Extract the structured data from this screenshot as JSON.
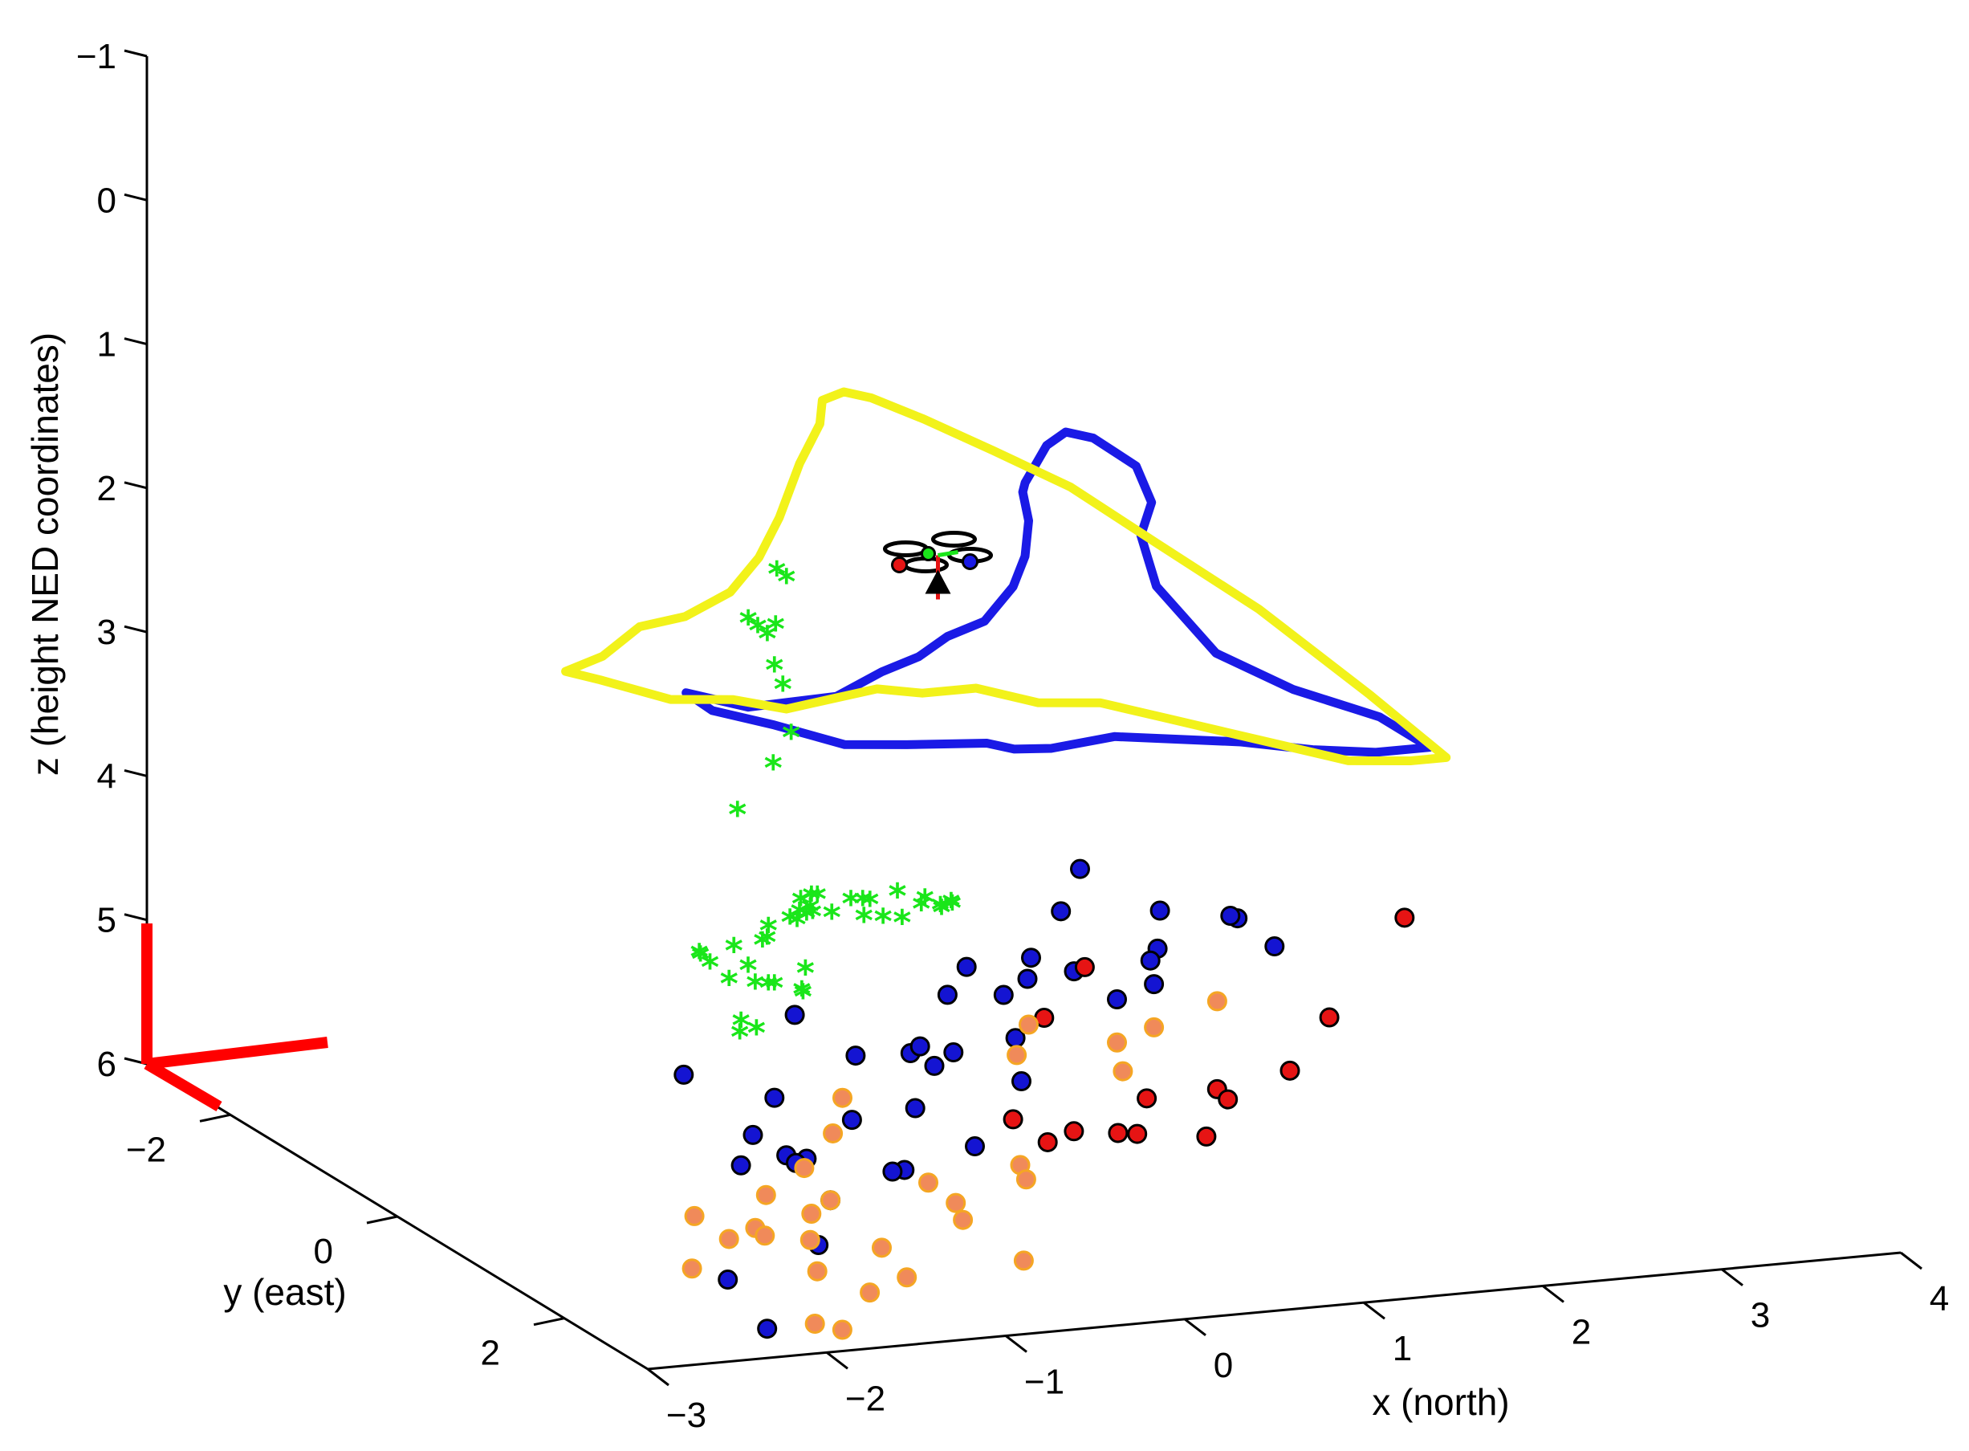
{
  "chart_data": {
    "type": "scatter",
    "projection": "3d",
    "title": "",
    "xlabel": "x  (north)",
    "ylabel": "y (east)",
    "zlabel": "z (height NED coordinates)",
    "xlim": [
      -3,
      4
    ],
    "ylim": [
      -3,
      3
    ],
    "zlim": [
      -1,
      6
    ],
    "z_direction": "reverse",
    "grid": false,
    "legend": "none",
    "ticks": {
      "x": [
        "−3",
        "−2",
        "−1",
        "0",
        "1",
        "2",
        "3",
        "4"
      ],
      "y": [
        "−2",
        "0",
        "2"
      ],
      "z": [
        "−1",
        "0",
        "1",
        "2",
        "3",
        "4",
        "5",
        "6"
      ]
    },
    "colors": {
      "axis": "#000000",
      "blue_track": "#1a1ae6",
      "yellow_track": "#f2f21a",
      "green_points": "#1ae61a",
      "blue_points": "#1414d2",
      "red_points": "#e61414",
      "orange_points": "#f08a5a",
      "frame": "#ff0000"
    },
    "series": [
      {
        "role": "blue_track",
        "type": "line",
        "x": [
          -1.9,
          -1.6,
          -1.2,
          -0.9,
          -0.6,
          -0.3,
          0.0,
          0.3,
          0.6,
          0.9,
          1.1,
          1.3,
          1.5,
          1.7,
          1.9,
          2.1,
          2.2,
          2.1,
          1.9,
          1.8,
          1.9,
          2.1,
          2.3,
          2.3,
          2.0,
          1.6,
          1.2,
          0.8,
          0.4,
          0.0,
          -0.3,
          -0.5,
          -0.9,
          -1.2,
          -1.5,
          -1.8,
          -1.9
        ],
        "y": [
          1.1,
          1.2,
          1.4,
          1.3,
          1.1,
          0.8,
          0.6,
          0.3,
          -0.2,
          -0.8,
          -1.3,
          -1.7,
          -2.0,
          -2.3,
          -2.5,
          -2.6,
          -2.3,
          -1.9,
          -1.6,
          -1.2,
          -0.7,
          -0.2,
          0.4,
          1.0,
          1.0,
          1.1,
          1.1,
          1.2,
          1.3,
          1.4,
          1.6,
          1.7,
          1.6,
          1.5,
          1.3,
          1.2,
          1.1
        ],
        "z": [
          2.1,
          2.2,
          2.1,
          2.0,
          2.0,
          2.0,
          2.0,
          1.9,
          1.9,
          1.9,
          1.9,
          2.0,
          2.0,
          2.0,
          2.0,
          2.1,
          2.2,
          2.3,
          2.4,
          2.6,
          2.9,
          3.0,
          3.0,
          3.0,
          3.0,
          2.9,
          2.8,
          2.7,
          2.6,
          2.6,
          2.5,
          2.4,
          2.4,
          2.4,
          2.3,
          2.2,
          2.1
        ]
      },
      {
        "role": "yellow_track",
        "type": "line",
        "x": [
          -2.2,
          -1.9,
          -1.6,
          -1.3,
          -1.0,
          -0.7,
          -0.4,
          -0.1,
          0.2,
          0.4,
          0.6,
          0.8,
          1.0,
          1.2,
          1.4,
          1.6,
          1.8,
          2.0,
          2.2,
          2.3,
          2.1,
          1.8,
          1.5,
          1.2,
          0.9,
          0.6,
          0.3,
          0.0,
          -0.3,
          -0.6,
          -0.9,
          -1.2,
          -1.5,
          -1.8,
          -2.1,
          -2.2
        ],
        "y": [
          0.3,
          0.1,
          -0.1,
          -0.2,
          -0.3,
          -0.6,
          -1.0,
          -1.4,
          -1.8,
          -2.2,
          -2.5,
          -2.8,
          -2.9,
          -2.7,
          -2.3,
          -1.8,
          -1.2,
          -0.4,
          0.5,
          1.2,
          1.2,
          1.1,
          1.0,
          0.9,
          0.8,
          0.7,
          0.6,
          0.5,
          0.5,
          0.6,
          0.7,
          0.8,
          0.8,
          0.7,
          0.5,
          0.3
        ],
        "z": [
          2.2,
          2.2,
          2.1,
          2.1,
          2.0,
          1.9,
          1.8,
          1.6,
          1.5,
          1.5,
          1.6,
          1.7,
          1.8,
          1.9,
          2.0,
          2.1,
          2.3,
          2.5,
          2.8,
          3.0,
          3.0,
          3.0,
          2.9,
          2.8,
          2.7,
          2.6,
          2.6,
          2.5,
          2.5,
          2.4,
          2.4,
          2.4,
          2.3,
          2.3,
          2.2,
          2.2
        ]
      },
      {
        "role": "green_points",
        "type": "scatter",
        "marker": "asterisk",
        "x": [
          -0.9,
          -0.8,
          -0.8,
          -0.7,
          -0.8,
          -0.6,
          -0.5,
          -0.7,
          -0.8,
          -0.9,
          -1.1,
          -1.8,
          -1.6,
          -1.4,
          -1.3,
          -1.4,
          -1.5,
          -1.4,
          -1.3,
          -1.1,
          -1.0,
          -0.9,
          -0.8,
          -0.7,
          -0.6,
          -0.5,
          -0.4,
          -0.2,
          0.0,
          0.2,
          0.4,
          0.6,
          0.8,
          -1.7,
          -1.5,
          -1.3,
          -1.2,
          -1.3,
          -1.5,
          -1.6,
          -1.6,
          -1.0,
          -0.9,
          -0.7,
          -0.4,
          -0.3,
          -0.1,
          0.1,
          0.3,
          0.5,
          0.6,
          0.7
        ],
        "y": [
          -0.3,
          -0.4,
          -0.2,
          -0.5,
          0.0,
          -0.6,
          -0.7,
          -0.4,
          -0.1,
          0.0,
          0.0,
          1.4,
          1.2,
          1.0,
          0.8,
          0.6,
          0.4,
          0.2,
          0.1,
          0.3,
          0.5,
          0.4,
          0.1,
          -0.1,
          -0.2,
          -0.4,
          -0.6,
          -0.8,
          -1.0,
          -1.2,
          -1.3,
          -1.4,
          -1.5,
          1.5,
          1.3,
          1.2,
          1.0,
          0.8,
          0.9,
          1.1,
          1.3,
          0.6,
          0.2,
          0.1,
          0.0,
          -0.2,
          -0.4,
          -0.6,
          -0.8,
          -1.0,
          -1.2,
          -1.3
        ],
        "z": [
          2.2,
          2.3,
          2.5,
          2.4,
          2.9,
          2.0,
          2.1,
          2.3,
          2.6,
          3.1,
          3.4,
          4.0,
          4.0,
          3.9,
          3.9,
          4.1,
          4.2,
          4.3,
          4.4,
          4.2,
          4.0,
          4.0,
          4.1,
          4.1,
          4.2,
          4.2,
          4.4,
          4.5,
          4.5,
          4.6,
          4.6,
          4.7,
          4.8,
          4.0,
          4.1,
          4.2,
          4.3,
          4.3,
          4.5,
          4.5,
          4.4,
          4.3,
          4.1,
          4.0,
          4.1,
          4.3,
          4.4,
          4.5,
          4.5,
          4.6,
          4.7,
          4.7
        ]
      },
      {
        "role": "blue_points",
        "type": "scatter",
        "marker": "filled-circle",
        "x": [
          -2.1,
          -1.9,
          -1.3,
          -1.2,
          -1.4,
          -1.2,
          -1.0,
          -0.9,
          -0.8,
          -0.6,
          -0.4,
          -0.3,
          -0.2,
          0.0,
          0.1,
          0.2,
          0.3,
          0.4,
          0.6,
          0.8,
          1.1,
          1.3,
          1.5,
          1.7,
          1.9,
          2.1,
          2.3,
          2.4,
          2.6,
          -1.5,
          -0.5,
          -0.7,
          0.5,
          0.9,
          1.2,
          1.6,
          2.0,
          -0.1,
          -1.1,
          0.2
        ],
        "y": [
          2.5,
          1.6,
          1.4,
          0.4,
          0.0,
          0.8,
          0.9,
          0.4,
          -0.2,
          0.3,
          0.5,
          -0.3,
          0.2,
          0.0,
          -0.5,
          -0.2,
          0.4,
          -0.7,
          -0.9,
          -0.6,
          -1.2,
          -0.6,
          -1.7,
          -1.9,
          -1.4,
          -1.8,
          -1.3,
          -1.6,
          -1.5,
          0.9,
          -0.6,
          1.0,
          -0.1,
          -1.1,
          -0.9,
          -0.8,
          -1.7,
          0.7,
          0.7,
          -0.6
        ],
        "z": [
          6.0,
          6.0,
          5.9,
          5.5,
          5.2,
          5.5,
          5.8,
          5.7,
          5.5,
          5.5,
          5.8,
          5.3,
          5.5,
          5.3,
          5.4,
          5.3,
          5.3,
          5.1,
          5.0,
          5.0,
          5.1,
          5.2,
          5.0,
          4.8,
          5.2,
          5.1,
          5.0,
          5.1,
          5.3,
          5.5,
          5.1,
          5.6,
          5.2,
          5.3,
          5.1,
          5.2,
          5.4,
          5.6,
          5.6,
          5.4
        ]
      },
      {
        "role": "red_points",
        "type": "scatter",
        "marker": "filled-circle",
        "x": [
          0.3,
          0.4,
          0.5,
          0.7,
          0.9,
          1.0,
          1.1,
          1.3,
          1.5,
          1.8,
          2.3,
          3.0,
          0.8,
          1.4
        ],
        "y": [
          0.3,
          0.5,
          0.6,
          0.7,
          0.5,
          0.4,
          0.9,
          0.6,
          0.3,
          0.4,
          -0.2,
          -0.8,
          -0.4,
          -1.2
        ],
        "z": [
          5.6,
          5.7,
          5.6,
          5.6,
          5.7,
          5.5,
          5.6,
          5.4,
          5.6,
          5.4,
          5.3,
          4.9,
          5.2,
          5.2
        ]
      },
      {
        "role": "orange_points",
        "type": "scatter",
        "marker": "filled-circle",
        "x": [
          -2.1,
          -1.9,
          -1.8,
          -1.7,
          -1.6,
          -1.5,
          -1.4,
          -1.3,
          -1.2,
          -1.1,
          -1.0,
          -0.9,
          -0.8,
          -0.7,
          -0.5,
          -0.3,
          -0.2,
          -1.6,
          -1.4,
          -1.2,
          -0.9,
          0.6,
          0.9,
          1.1,
          1.3,
          1.6,
          2.0,
          0.2,
          -0.4,
          0.0
        ],
        "y": [
          1.6,
          1.2,
          1.4,
          1.5,
          1.4,
          1.2,
          1.6,
          1.3,
          1.1,
          0.8,
          0.9,
          1.3,
          0.5,
          0.4,
          1.0,
          0.9,
          1.5,
          2.0,
          1.9,
          1.8,
          1.6,
          -0.3,
          -0.8,
          -0.1,
          -0.6,
          -0.8,
          -0.9,
          0.6,
          1.2,
          1.1
        ],
        "z": [
          5.9,
          5.7,
          5.8,
          5.7,
          5.8,
          5.6,
          6.0,
          5.9,
          5.8,
          5.6,
          5.8,
          6.0,
          5.5,
          5.3,
          5.7,
          5.9,
          6.1,
          6.2,
          6.3,
          6.1,
          6.1,
          5.4,
          5.4,
          5.5,
          5.5,
          5.5,
          5.4,
          5.8,
          5.9,
          5.7
        ]
      }
    ],
    "drone": {
      "position": {
        "x": 0.3,
        "y": -0.6,
        "z": 2.0
      },
      "rotor_colors": [
        "#000000",
        "#e61414",
        "#1a1ae6",
        "#1ae61a"
      ]
    },
    "reference_frame": {
      "origin": "corner",
      "axes_color": "#ff0000"
    }
  }
}
